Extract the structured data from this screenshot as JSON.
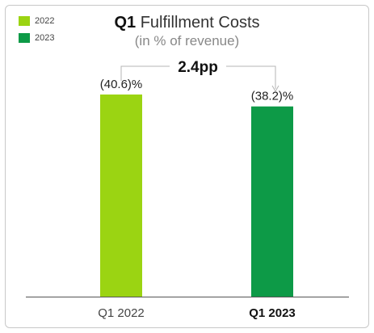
{
  "title_bold": "Q1",
  "title_rest": " Fulfillment Costs",
  "subtitle": "(in % of revenue)",
  "legend": [
    {
      "label": "2022",
      "color": "#9BD412"
    },
    {
      "label": "2023",
      "color": "#0D9A47"
    }
  ],
  "annotation": "2.4pp",
  "chart_data": {
    "type": "bar",
    "categories": [
      "Q1 2022",
      "Q1 2023"
    ],
    "values": [
      -40.6,
      -38.2
    ],
    "value_labels": [
      "(40.6)%",
      "(38.2)%"
    ],
    "colors": [
      "#9BD412",
      "#0D9A47"
    ],
    "category_bold": [
      false,
      true
    ],
    "ylim": [
      0,
      50
    ]
  }
}
